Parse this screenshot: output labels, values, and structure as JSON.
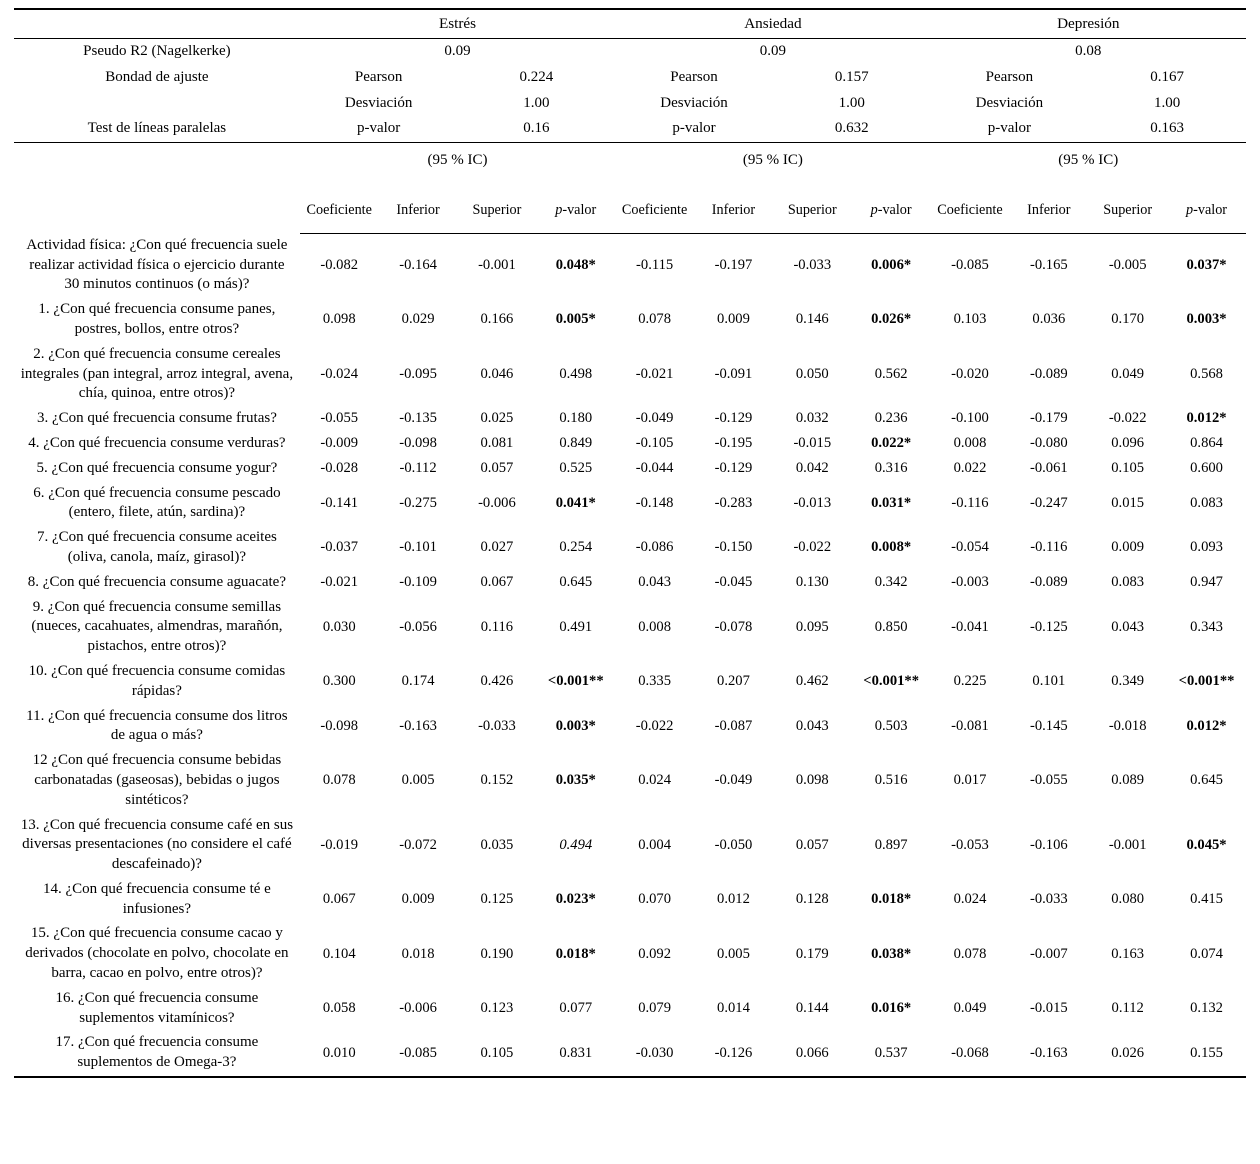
{
  "page": {
    "background": "#ffffff",
    "text_color": "#000000",
    "rule_color": "#000000"
  },
  "table": {
    "groups": [
      {
        "label": "Estrés",
        "pseudo_r2": "0.09",
        "pearson": "0.224",
        "desviacion": "1.00",
        "p_valor": "0.16"
      },
      {
        "label": "Ansiedad",
        "pseudo_r2": "0.09",
        "pearson": "0.157",
        "desviacion": "1.00",
        "p_valor": "0.632"
      },
      {
        "label": "Depresión",
        "pseudo_r2": "0.08",
        "pearson": "0.167",
        "desviacion": "1.00",
        "p_valor": "0.163"
      }
    ],
    "meta_labels": {
      "pseudo_r2": "Pseudo R2 (Nagelkerke)",
      "bondad": "Bondad de ajuste",
      "pearson": "Pearson",
      "desviacion": "Desviación",
      "test_lineas": "Test de líneas paralelas",
      "p_valor": "p-valor"
    },
    "ci_label": "(95 % IC)",
    "col_headers": [
      "Coeficiente",
      "Inferior",
      "Superior",
      "p-valor"
    ],
    "rows": [
      {
        "label": "Actividad física: ¿Con qué frecuencia suele realizar actividad física o ejercicio durante 30 minutos continuos (o más)?",
        "values": [
          "-0.082",
          "-0.164",
          "-0.001",
          "0.048*",
          "-0.115",
          "-0.197",
          "-0.033",
          "0.006*",
          "-0.085",
          "-0.165",
          "-0.005",
          "0.037*"
        ]
      },
      {
        "label": "1. ¿Con qué frecuencia consume panes, postres, bollos, entre otros?",
        "values": [
          "0.098",
          "0.029",
          "0.166",
          "0.005*",
          "0.078",
          "0.009",
          "0.146",
          "0.026*",
          "0.103",
          "0.036",
          "0.170",
          "0.003*"
        ]
      },
      {
        "label": "2. ¿Con qué frecuencia consume cereales integrales (pan integral, arroz integral, avena, chía, quinoa, entre otros)?",
        "values": [
          "-0.024",
          "-0.095",
          "0.046",
          "0.498",
          "-0.021",
          "-0.091",
          "0.050",
          "0.562",
          "-0.020",
          "-0.089",
          "0.049",
          "0.568"
        ]
      },
      {
        "label": "3. ¿Con qué frecuencia consume frutas?",
        "values": [
          "-0.055",
          "-0.135",
          "0.025",
          "0.180",
          "-0.049",
          "-0.129",
          "0.032",
          "0.236",
          "-0.100",
          "-0.179",
          "-0.022",
          "0.012*"
        ]
      },
      {
        "label": "4. ¿Con qué frecuencia consume verduras?",
        "values": [
          "-0.009",
          "-0.098",
          "0.081",
          "0.849",
          "-0.105",
          "-0.195",
          "-0.015",
          "0.022*",
          "0.008",
          "-0.080",
          "0.096",
          "0.864"
        ]
      },
      {
        "label": "5. ¿Con qué frecuencia consume yogur?",
        "values": [
          "-0.028",
          "-0.112",
          "0.057",
          "0.525",
          "-0.044",
          "-0.129",
          "0.042",
          "0.316",
          "0.022",
          "-0.061",
          "0.105",
          "0.600"
        ]
      },
      {
        "label": "6. ¿Con qué frecuencia consume pescado (entero, filete, atún, sardina)?",
        "values": [
          "-0.141",
          "-0.275",
          "-0.006",
          "0.041*",
          "-0.148",
          "-0.283",
          "-0.013",
          "0.031*",
          "-0.116",
          "-0.247",
          "0.015",
          "0.083"
        ]
      },
      {
        "label": "7. ¿Con qué frecuencia consume aceites (oliva, canola, maíz, girasol)?",
        "values": [
          "-0.037",
          "-0.101",
          "0.027",
          "0.254",
          "-0.086",
          "-0.150",
          "-0.022",
          "0.008*",
          "-0.054",
          "-0.116",
          "0.009",
          "0.093"
        ]
      },
      {
        "label": "8. ¿Con qué frecuencia consume aguacate?",
        "values": [
          "-0.021",
          "-0.109",
          "0.067",
          "0.645",
          "0.043",
          "-0.045",
          "0.130",
          "0.342",
          "-0.003",
          "-0.089",
          "0.083",
          "0.947"
        ]
      },
      {
        "label": "9. ¿Con qué frecuencia consume semillas (nueces, cacahuates, almendras, marañón, pistachos, entre otros)?",
        "values": [
          "0.030",
          "-0.056",
          "0.116",
          "0.491",
          "0.008",
          "-0.078",
          "0.095",
          "0.850",
          "-0.041",
          "-0.125",
          "0.043",
          "0.343"
        ]
      },
      {
        "label": "10. ¿Con qué frecuencia consume comidas rápidas?",
        "values": [
          "0.300",
          "0.174",
          "0.426",
          "<0.001**",
          "0.335",
          "0.207",
          "0.462",
          "<0.001**",
          "0.225",
          "0.101",
          "0.349",
          "<0.001**"
        ]
      },
      {
        "label": "11. ¿Con qué frecuencia consume dos litros de agua o más?",
        "values": [
          "-0.098",
          "-0.163",
          "-0.033",
          "0.003*",
          "-0.022",
          "-0.087",
          "0.043",
          "0.503",
          "-0.081",
          "-0.145",
          "-0.018",
          "0.012*"
        ]
      },
      {
        "label": "12 ¿Con qué frecuencia consume bebidas carbonatadas (gaseosas), bebidas o jugos sintéticos?",
        "values": [
          "0.078",
          "0.005",
          "0.152",
          "0.035*",
          "0.024",
          "-0.049",
          "0.098",
          "0.516",
          "0.017",
          "-0.055",
          "0.089",
          "0.645"
        ]
      },
      {
        "label": "13. ¿Con qué frecuencia consume café en sus diversas presentaciones (no considere el café descafeinado)?",
        "values": [
          "-0.019",
          "-0.072",
          "0.035",
          "0.494",
          "0.004",
          "-0.050",
          "0.057",
          "0.897",
          "-0.053",
          "-0.106",
          "-0.001",
          "0.045*"
        ],
        "italic_indices": [
          3
        ]
      },
      {
        "label": "14. ¿Con qué frecuencia consume té e infusiones?",
        "values": [
          "0.067",
          "0.009",
          "0.125",
          "0.023*",
          "0.070",
          "0.012",
          "0.128",
          "0.018*",
          "0.024",
          "-0.033",
          "0.080",
          "0.415"
        ]
      },
      {
        "label": "15. ¿Con qué frecuencia consume cacao y derivados (chocolate en polvo, chocolate en barra, cacao en polvo, entre otros)?",
        "values": [
          "0.104",
          "0.018",
          "0.190",
          "0.018*",
          "0.092",
          "0.005",
          "0.179",
          "0.038*",
          "0.078",
          "-0.007",
          "0.163",
          "0.074"
        ]
      },
      {
        "label": "16. ¿Con qué frecuencia consume suplementos vitamínicos?",
        "values": [
          "0.058",
          "-0.006",
          "0.123",
          "0.077",
          "0.079",
          "0.014",
          "0.144",
          "0.016*",
          "0.049",
          "-0.015",
          "0.112",
          "0.132"
        ]
      },
      {
        "label": "17. ¿Con qué frecuencia consume suplementos de Omega-3?",
        "values": [
          "0.010",
          "-0.085",
          "0.105",
          "0.831",
          "-0.030",
          "-0.126",
          "0.066",
          "0.537",
          "-0.068",
          "-0.163",
          "0.026",
          "0.155"
        ]
      }
    ]
  }
}
